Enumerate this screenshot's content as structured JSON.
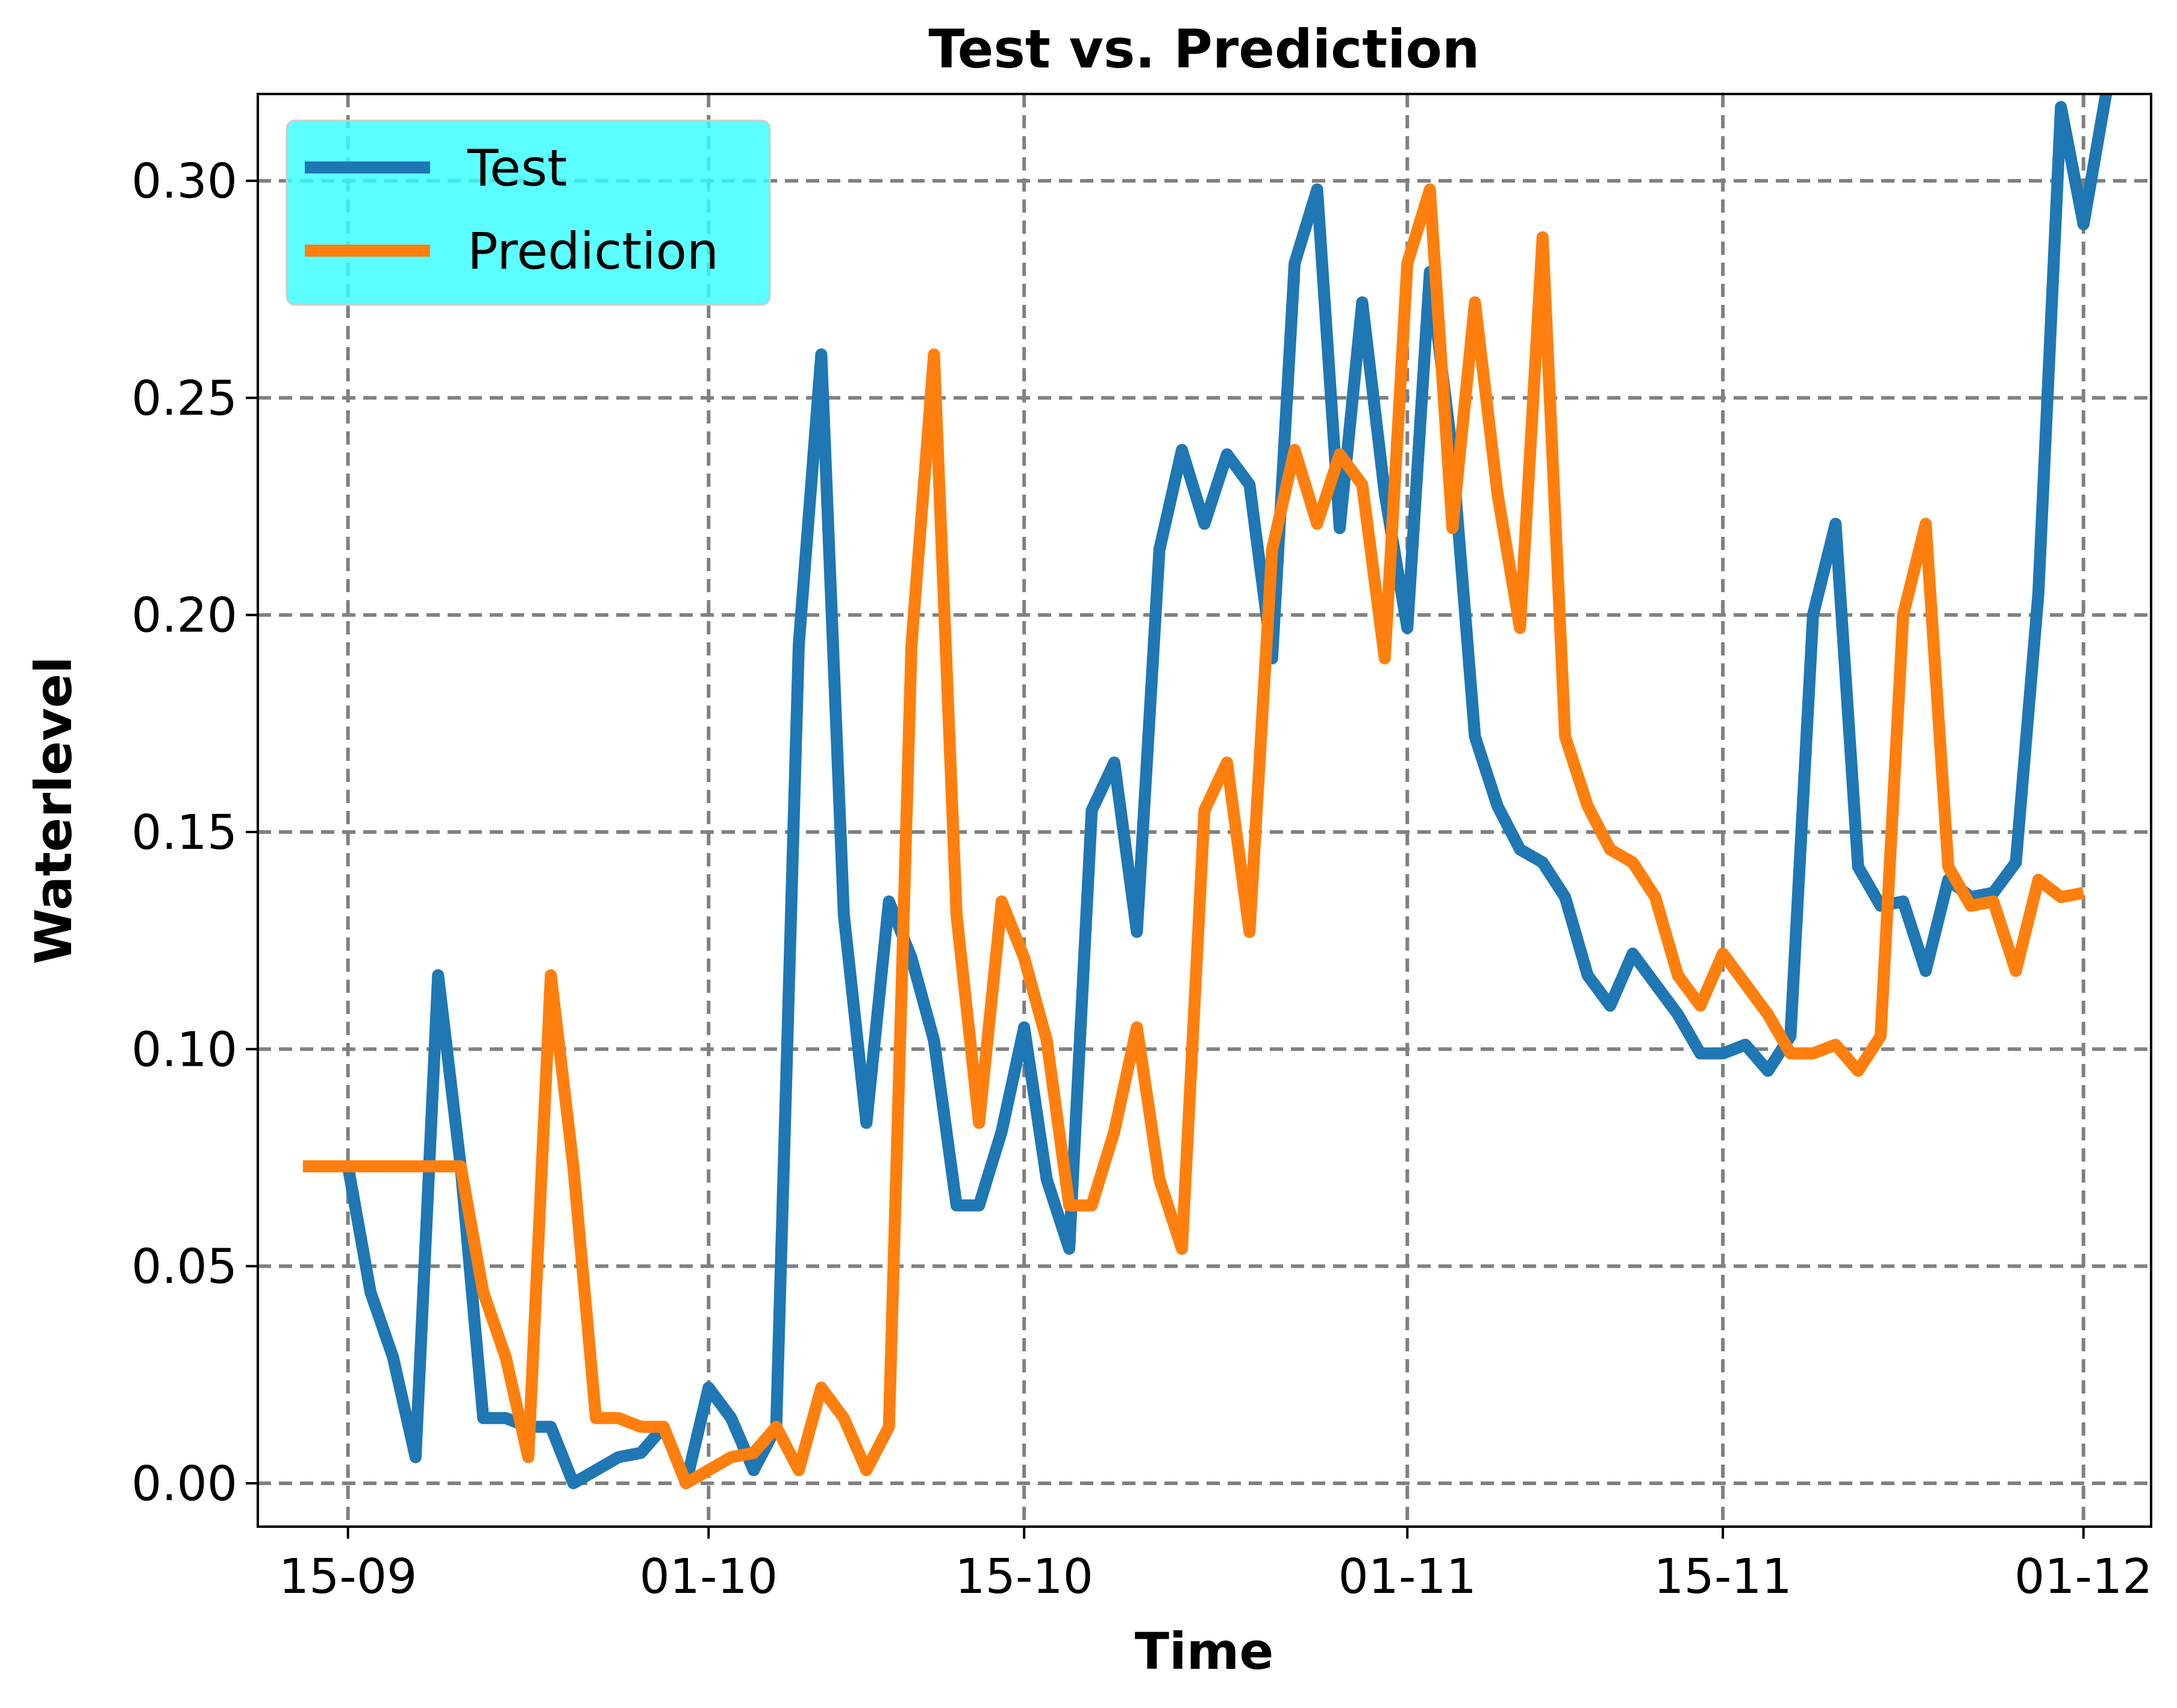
{
  "chart_data": {
    "type": "line",
    "title": "Test vs. Prediction",
    "xlabel": "Time",
    "ylabel": "Waterlevel",
    "ylim": [
      -0.01,
      0.32
    ],
    "xlim": [
      "2024-09-11",
      "2024-12-04"
    ],
    "x_axis_type": "date",
    "yticks": [
      0.0,
      0.05,
      0.1,
      0.15,
      0.2,
      0.25,
      0.3
    ],
    "ytick_labels": [
      "0.00",
      "0.05",
      "0.10",
      "0.15",
      "0.20",
      "0.25",
      "0.30"
    ],
    "xticks": [
      "2024-09-15",
      "2024-10-01",
      "2024-10-15",
      "2024-11-01",
      "2024-11-15",
      "2024-12-01"
    ],
    "xtick_labels": [
      "15-09",
      "01-10",
      "15-10",
      "01-11",
      "15-11",
      "01-12"
    ],
    "grid": true,
    "legend_position": "top-left",
    "series": [
      {
        "name": "Test",
        "color": "#1f77b4",
        "points": [
          [
            "2024-09-15",
            0.073
          ],
          [
            "2024-09-16",
            0.044
          ],
          [
            "2024-09-17",
            0.029
          ],
          [
            "2024-09-18",
            0.006
          ],
          [
            "2024-09-19",
            0.117
          ],
          [
            "2024-09-20",
            0.073
          ],
          [
            "2024-09-21",
            0.015
          ],
          [
            "2024-09-22",
            0.015
          ],
          [
            "2024-09-23",
            0.013
          ],
          [
            "2024-09-24",
            0.013
          ],
          [
            "2024-09-25",
            0.0
          ],
          [
            "2024-09-26",
            0.003
          ],
          [
            "2024-09-27",
            0.006
          ],
          [
            "2024-09-28",
            0.007
          ],
          [
            "2024-09-29",
            0.013
          ],
          [
            "2024-09-30",
            0.0
          ],
          [
            "2024-10-01",
            0.022
          ],
          [
            "2024-10-02",
            0.015
          ],
          [
            "2024-10-03",
            0.003
          ],
          [
            "2024-10-04",
            0.013
          ],
          [
            "2024-10-05",
            0.193
          ],
          [
            "2024-10-06",
            0.26
          ],
          [
            "2024-10-07",
            0.131
          ],
          [
            "2024-10-08",
            0.083
          ],
          [
            "2024-10-09",
            0.134
          ],
          [
            "2024-10-10",
            0.121
          ],
          [
            "2024-10-11",
            0.102
          ],
          [
            "2024-10-12",
            0.064
          ],
          [
            "2024-10-13",
            0.064
          ],
          [
            "2024-10-14",
            0.081
          ],
          [
            "2024-10-15",
            0.105
          ],
          [
            "2024-10-16",
            0.07
          ],
          [
            "2024-10-17",
            0.054
          ],
          [
            "2024-10-18",
            0.155
          ],
          [
            "2024-10-19",
            0.166
          ],
          [
            "2024-10-20",
            0.127
          ],
          [
            "2024-10-21",
            0.215
          ],
          [
            "2024-10-22",
            0.238
          ],
          [
            "2024-10-23",
            0.221
          ],
          [
            "2024-10-24",
            0.237
          ],
          [
            "2024-10-25",
            0.23
          ],
          [
            "2024-10-26",
            0.19
          ],
          [
            "2024-10-27",
            0.281
          ],
          [
            "2024-10-28",
            0.298
          ],
          [
            "2024-10-29",
            0.22
          ],
          [
            "2024-10-30",
            0.272
          ],
          [
            "2024-10-31",
            0.228
          ],
          [
            "2024-11-01",
            0.197
          ],
          [
            "2024-11-02",
            0.279
          ],
          [
            "2024-11-03",
            0.237
          ],
          [
            "2024-11-04",
            0.172
          ],
          [
            "2024-11-05",
            0.156
          ],
          [
            "2024-11-06",
            0.146
          ],
          [
            "2024-11-07",
            0.143
          ],
          [
            "2024-11-08",
            0.135
          ],
          [
            "2024-11-09",
            0.117
          ],
          [
            "2024-11-10",
            0.11
          ],
          [
            "2024-11-11",
            0.122
          ],
          [
            "2024-11-12",
            0.115
          ],
          [
            "2024-11-13",
            0.108
          ],
          [
            "2024-11-14",
            0.099
          ],
          [
            "2024-11-15",
            0.099
          ],
          [
            "2024-11-16",
            0.101
          ],
          [
            "2024-11-17",
            0.095
          ],
          [
            "2024-11-18",
            0.103
          ],
          [
            "2024-11-19",
            0.2
          ],
          [
            "2024-11-20",
            0.221
          ],
          [
            "2024-11-21",
            0.142
          ],
          [
            "2024-11-22",
            0.133
          ],
          [
            "2024-11-23",
            0.134
          ],
          [
            "2024-11-24",
            0.118
          ],
          [
            "2024-11-25",
            0.139
          ],
          [
            "2024-11-26",
            0.135
          ],
          [
            "2024-11-27",
            0.136
          ],
          [
            "2024-11-28",
            0.143
          ],
          [
            "2024-11-29",
            0.205
          ],
          [
            "2024-11-30",
            0.317
          ],
          [
            "2024-12-01",
            0.29
          ],
          [
            "2024-12-02",
            0.32
          ]
        ]
      },
      {
        "name": "Prediction",
        "color": "#ff7f0e",
        "points": [
          [
            "2024-09-13",
            0.073
          ],
          [
            "2024-09-14",
            0.073
          ],
          [
            "2024-09-15",
            0.073
          ],
          [
            "2024-09-16",
            0.073
          ],
          [
            "2024-09-17",
            0.073
          ],
          [
            "2024-09-18",
            0.073
          ],
          [
            "2024-09-19",
            0.073
          ],
          [
            "2024-09-20",
            0.073
          ],
          [
            "2024-09-21",
            0.044
          ],
          [
            "2024-09-22",
            0.029
          ],
          [
            "2024-09-23",
            0.006
          ],
          [
            "2024-09-24",
            0.117
          ],
          [
            "2024-09-25",
            0.073
          ],
          [
            "2024-09-26",
            0.015
          ],
          [
            "2024-09-27",
            0.015
          ],
          [
            "2024-09-28",
            0.013
          ],
          [
            "2024-09-29",
            0.013
          ],
          [
            "2024-09-30",
            0.0
          ],
          [
            "2024-10-01",
            0.003
          ],
          [
            "2024-10-02",
            0.006
          ],
          [
            "2024-10-03",
            0.007
          ],
          [
            "2024-10-04",
            0.013
          ],
          [
            "2024-10-05",
            0.003
          ],
          [
            "2024-10-06",
            0.022
          ],
          [
            "2024-10-07",
            0.015
          ],
          [
            "2024-10-08",
            0.003
          ],
          [
            "2024-10-09",
            0.013
          ],
          [
            "2024-10-10",
            0.193
          ],
          [
            "2024-10-11",
            0.26
          ],
          [
            "2024-10-12",
            0.131
          ],
          [
            "2024-10-13",
            0.083
          ],
          [
            "2024-10-14",
            0.134
          ],
          [
            "2024-10-15",
            0.121
          ],
          [
            "2024-10-16",
            0.102
          ],
          [
            "2024-10-17",
            0.064
          ],
          [
            "2024-10-18",
            0.064
          ],
          [
            "2024-10-19",
            0.081
          ],
          [
            "2024-10-20",
            0.105
          ],
          [
            "2024-10-21",
            0.07
          ],
          [
            "2024-10-22",
            0.054
          ],
          [
            "2024-10-23",
            0.155
          ],
          [
            "2024-10-24",
            0.166
          ],
          [
            "2024-10-25",
            0.127
          ],
          [
            "2024-10-26",
            0.215
          ],
          [
            "2024-10-27",
            0.238
          ],
          [
            "2024-10-28",
            0.221
          ],
          [
            "2024-10-29",
            0.237
          ],
          [
            "2024-10-30",
            0.23
          ],
          [
            "2024-10-31",
            0.19
          ],
          [
            "2024-11-01",
            0.281
          ],
          [
            "2024-11-02",
            0.298
          ],
          [
            "2024-11-03",
            0.22
          ],
          [
            "2024-11-04",
            0.272
          ],
          [
            "2024-11-05",
            0.228
          ],
          [
            "2024-11-06",
            0.197
          ],
          [
            "2024-11-07",
            0.287
          ],
          [
            "2024-11-08",
            0.172
          ],
          [
            "2024-11-09",
            0.156
          ],
          [
            "2024-11-10",
            0.146
          ],
          [
            "2024-11-11",
            0.143
          ],
          [
            "2024-11-12",
            0.135
          ],
          [
            "2024-11-13",
            0.117
          ],
          [
            "2024-11-14",
            0.11
          ],
          [
            "2024-11-15",
            0.122
          ],
          [
            "2024-11-16",
            0.115
          ],
          [
            "2024-11-17",
            0.108
          ],
          [
            "2024-11-18",
            0.099
          ],
          [
            "2024-11-19",
            0.099
          ],
          [
            "2024-11-20",
            0.101
          ],
          [
            "2024-11-21",
            0.095
          ],
          [
            "2024-11-22",
            0.103
          ],
          [
            "2024-11-23",
            0.2
          ],
          [
            "2024-11-24",
            0.221
          ],
          [
            "2024-11-25",
            0.142
          ],
          [
            "2024-11-26",
            0.133
          ],
          [
            "2024-11-27",
            0.134
          ],
          [
            "2024-11-28",
            0.118
          ],
          [
            "2024-11-29",
            0.139
          ],
          [
            "2024-11-30",
            0.135
          ],
          [
            "2024-12-01",
            0.136
          ]
        ]
      }
    ],
    "legend_background": "#33ffff"
  }
}
